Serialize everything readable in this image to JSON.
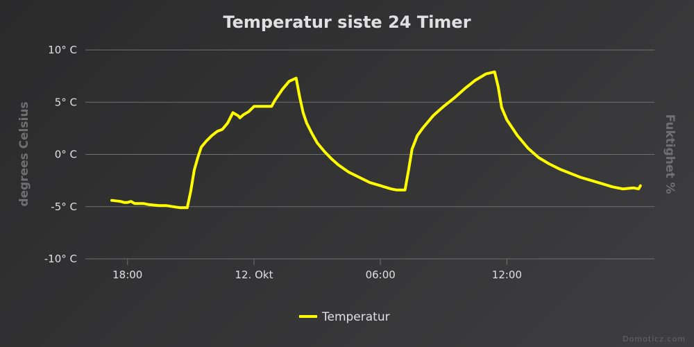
{
  "chart_data": {
    "type": "line",
    "title": "Temperatur siste 24 Timer",
    "ylabel": "degrees Celsius",
    "ylabel_right": "Fuktighet %",
    "ylim": [
      -10,
      10
    ],
    "yticks": [
      {
        "value": 10,
        "label": "10° C"
      },
      {
        "value": 5,
        "label": "5° C"
      },
      {
        "value": 0,
        "label": "0° C"
      },
      {
        "value": -5,
        "label": "-5° C"
      },
      {
        "value": -10,
        "label": "-10° C"
      }
    ],
    "xlim": [
      "2023-10-11T16:00",
      "2023-10-12T19:00"
    ],
    "xticks": [
      {
        "value": "2023-10-11T18:00",
        "label": "18:00"
      },
      {
        "value": "2023-10-12T00:00",
        "label": "12. Okt"
      },
      {
        "value": "2023-10-12T06:00",
        "label": "06:00"
      },
      {
        "value": "2023-10-12T12:00",
        "label": "12:00"
      }
    ],
    "grid": true,
    "legend_position": "bottom-center",
    "series": [
      {
        "name": "Temperatur",
        "color": "#ffff00",
        "x": [
          "2023-10-11T17:15",
          "2023-10-11T17:40",
          "2023-10-11T17:50",
          "2023-10-11T18:00",
          "2023-10-11T18:10",
          "2023-10-11T18:20",
          "2023-10-11T18:45",
          "2023-10-11T19:00",
          "2023-10-11T19:30",
          "2023-10-11T19:50",
          "2023-10-11T20:10",
          "2023-10-11T20:30",
          "2023-10-11T20:50",
          "2023-10-11T21:00",
          "2023-10-11T21:05",
          "2023-10-11T21:10",
          "2023-10-11T21:20",
          "2023-10-11T21:30",
          "2023-10-11T21:45",
          "2023-10-11T22:00",
          "2023-10-11T22:15",
          "2023-10-11T22:30",
          "2023-10-11T22:45",
          "2023-10-11T23:00",
          "2023-10-11T23:15",
          "2023-10-11T23:20",
          "2023-10-11T23:30",
          "2023-10-11T23:45",
          "2023-10-12T00:00",
          "2023-10-12T00:15",
          "2023-10-12T00:30",
          "2023-10-12T00:50",
          "2023-10-12T01:00",
          "2023-10-12T01:20",
          "2023-10-12T01:40",
          "2023-10-12T02:00",
          "2023-10-12T02:10",
          "2023-10-12T02:20",
          "2023-10-12T02:30",
          "2023-10-12T02:45",
          "2023-10-12T03:00",
          "2023-10-12T03:20",
          "2023-10-12T03:40",
          "2023-10-12T04:00",
          "2023-10-12T04:30",
          "2023-10-12T05:00",
          "2023-10-12T05:30",
          "2023-10-12T06:00",
          "2023-10-12T06:30",
          "2023-10-12T06:45",
          "2023-10-12T07:10",
          "2023-10-12T07:20",
          "2023-10-12T07:30",
          "2023-10-12T07:45",
          "2023-10-12T08:00",
          "2023-10-12T08:30",
          "2023-10-12T09:00",
          "2023-10-12T09:30",
          "2023-10-12T10:00",
          "2023-10-12T10:30",
          "2023-10-12T11:00",
          "2023-10-12T11:25",
          "2023-10-12T11:35",
          "2023-10-12T11:45",
          "2023-10-12T12:00",
          "2023-10-12T12:30",
          "2023-10-12T13:00",
          "2023-10-12T13:30",
          "2023-10-12T14:00",
          "2023-10-12T14:30",
          "2023-10-12T15:00",
          "2023-10-12T15:30",
          "2023-10-12T16:00",
          "2023-10-12T16:30",
          "2023-10-12T17:00",
          "2023-10-12T17:30",
          "2023-10-12T18:00",
          "2023-10-12T18:15",
          "2023-10-12T18:20"
        ],
        "values": [
          -4.4,
          -4.5,
          -4.6,
          -4.6,
          -4.5,
          -4.7,
          -4.7,
          -4.8,
          -4.9,
          -4.9,
          -5.0,
          -5.1,
          -5.1,
          -3.5,
          -2.5,
          -1.5,
          -0.3,
          0.7,
          1.3,
          1.8,
          2.2,
          2.4,
          3.0,
          4.0,
          3.7,
          3.5,
          3.8,
          4.1,
          4.6,
          4.6,
          4.6,
          4.6,
          5.2,
          6.2,
          7.0,
          7.3,
          5.5,
          4.0,
          3.0,
          2.0,
          1.1,
          0.3,
          -0.4,
          -1.0,
          -1.7,
          -2.2,
          -2.7,
          -3.0,
          -3.3,
          -3.4,
          -3.4,
          -1.5,
          0.5,
          1.8,
          2.5,
          3.7,
          4.6,
          5.4,
          6.3,
          7.1,
          7.7,
          7.9,
          6.5,
          4.5,
          3.3,
          1.8,
          0.6,
          -0.3,
          -0.9,
          -1.4,
          -1.8,
          -2.2,
          -2.5,
          -2.8,
          -3.1,
          -3.3,
          -3.2,
          -3.3,
          -3.0
        ]
      }
    ]
  },
  "credit": "Domoticz.com"
}
